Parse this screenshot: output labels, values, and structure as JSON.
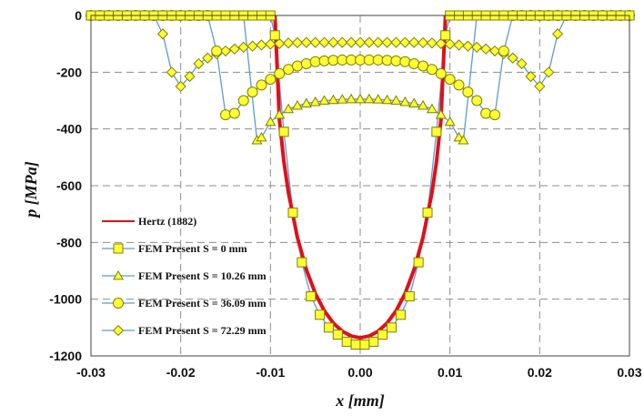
{
  "chart_data": {
    "type": "line",
    "xlabel": "x [mm]",
    "ylabel": "p [MPa]",
    "xlim": [
      -0.03,
      0.03
    ],
    "ylim": [
      -1200,
      0
    ],
    "x_ticks": [
      "-0.03",
      "-0.02",
      "-0.01",
      "0.00",
      "0.01",
      "0.02",
      "0.03"
    ],
    "y_ticks": [
      "0",
      "-200",
      "-400",
      "-600",
      "-800",
      "-1000",
      "-1200"
    ],
    "grid": "dashed",
    "legend_position": "lower-left",
    "colors": {
      "hertz": "#e0101a",
      "fem_line": "#5b9bd5",
      "marker_fill": "#ffff33",
      "marker_stroke": "#7f7f00"
    },
    "series": [
      {
        "name": "Hertz (1882)",
        "style": "line",
        "x": [
          -0.0095,
          -0.009,
          -0.0085,
          -0.008,
          -0.007,
          -0.006,
          -0.005,
          -0.004,
          -0.003,
          -0.002,
          -0.001,
          0.0,
          0.001,
          0.002,
          0.003,
          0.004,
          0.005,
          0.006,
          0.007,
          0.008,
          0.0085,
          0.009,
          0.0095
        ],
        "y": [
          0,
          -368,
          -516,
          -624,
          -782,
          -896,
          -980,
          -1041,
          -1084,
          -1113,
          -1130,
          -1136,
          -1130,
          -1113,
          -1084,
          -1041,
          -980,
          -896,
          -782,
          -624,
          -516,
          -368,
          0
        ]
      },
      {
        "name": "FEM Present S = 0 mm",
        "marker": "square",
        "x": [
          -0.03,
          -0.029,
          -0.028,
          -0.027,
          -0.026,
          -0.025,
          -0.024,
          -0.023,
          -0.022,
          -0.021,
          -0.02,
          -0.019,
          -0.018,
          -0.017,
          -0.016,
          -0.015,
          -0.014,
          -0.013,
          -0.012,
          -0.011,
          -0.01,
          -0.0095,
          -0.0085,
          -0.0075,
          -0.0065,
          -0.0055,
          -0.0045,
          -0.0035,
          -0.0025,
          -0.0015,
          -0.0005,
          0.0005,
          0.0015,
          0.0025,
          0.0035,
          0.0045,
          0.0055,
          0.0065,
          0.0075,
          0.0085,
          0.0095,
          0.01,
          0.011,
          0.012,
          0.013,
          0.014,
          0.015,
          0.016,
          0.017,
          0.018,
          0.019,
          0.02,
          0.021,
          0.022,
          0.023,
          0.024,
          0.025,
          0.026,
          0.027,
          0.028,
          0.029,
          0.03
        ],
        "y": [
          0,
          0,
          0,
          0,
          0,
          0,
          0,
          0,
          0,
          0,
          0,
          0,
          0,
          0,
          0,
          0,
          0,
          0,
          0,
          0,
          0,
          -70,
          -410,
          -695,
          -870,
          -990,
          -1055,
          -1100,
          -1125,
          -1150,
          -1160,
          -1160,
          -1150,
          -1125,
          -1100,
          -1055,
          -990,
          -870,
          -695,
          -410,
          -70,
          0,
          0,
          0,
          0,
          0,
          0,
          0,
          0,
          0,
          0,
          0,
          0,
          0,
          0,
          0,
          0,
          0,
          0,
          0,
          0,
          0
        ]
      },
      {
        "name": "FEM Present S = 10.26 mm",
        "marker": "triangle",
        "x": [
          -0.03,
          -0.029,
          -0.028,
          -0.027,
          -0.026,
          -0.025,
          -0.024,
          -0.023,
          -0.022,
          -0.021,
          -0.02,
          -0.019,
          -0.018,
          -0.017,
          -0.016,
          -0.015,
          -0.014,
          -0.013,
          -0.0115,
          -0.011,
          -0.01,
          -0.009,
          -0.008,
          -0.007,
          -0.006,
          -0.005,
          -0.004,
          -0.003,
          -0.002,
          -0.001,
          0.0,
          0.001,
          0.002,
          0.003,
          0.004,
          0.005,
          0.006,
          0.007,
          0.008,
          0.009,
          0.01,
          0.011,
          0.0115,
          0.013,
          0.014,
          0.015,
          0.016,
          0.017,
          0.018,
          0.019,
          0.02,
          0.021,
          0.022,
          0.023,
          0.024,
          0.025,
          0.026,
          0.027,
          0.028,
          0.029,
          0.03
        ],
        "y": [
          0,
          0,
          0,
          0,
          0,
          0,
          0,
          0,
          0,
          0,
          0,
          0,
          0,
          0,
          0,
          0,
          0,
          0,
          -440,
          -430,
          -375,
          -350,
          -330,
          -318,
          -310,
          -305,
          -300,
          -298,
          -296,
          -295,
          -295,
          -295,
          -296,
          -298,
          -300,
          -305,
          -310,
          -318,
          -330,
          -350,
          -375,
          -430,
          -440,
          0,
          0,
          0,
          0,
          0,
          0,
          0,
          0,
          0,
          0,
          0,
          0,
          0,
          0,
          0,
          0,
          0,
          0
        ]
      },
      {
        "name": "FEM Present S = 36.09 mm",
        "marker": "circle",
        "x": [
          -0.03,
          -0.029,
          -0.028,
          -0.027,
          -0.026,
          -0.025,
          -0.024,
          -0.023,
          -0.022,
          -0.021,
          -0.02,
          -0.019,
          -0.018,
          -0.017,
          -0.016,
          -0.015,
          -0.014,
          -0.013,
          -0.012,
          -0.011,
          -0.01,
          -0.009,
          -0.008,
          -0.007,
          -0.006,
          -0.005,
          -0.004,
          -0.003,
          -0.002,
          -0.001,
          0.0,
          0.001,
          0.002,
          0.003,
          0.004,
          0.005,
          0.006,
          0.007,
          0.008,
          0.009,
          0.01,
          0.011,
          0.012,
          0.013,
          0.014,
          0.015,
          0.016,
          0.017,
          0.018,
          0.019,
          0.02,
          0.021,
          0.022,
          0.023,
          0.024,
          0.025,
          0.026,
          0.027,
          0.028,
          0.029,
          0.03
        ],
        "y": [
          0,
          0,
          0,
          0,
          0,
          0,
          0,
          0,
          0,
          0,
          0,
          0,
          0,
          0,
          -125,
          -350,
          -345,
          -300,
          -270,
          -245,
          -225,
          -205,
          -190,
          -178,
          -170,
          -163,
          -160,
          -158,
          -157,
          -157,
          -157,
          -157,
          -157,
          -158,
          -160,
          -163,
          -170,
          -178,
          -190,
          -205,
          -225,
          -245,
          -270,
          -300,
          -345,
          -350,
          -125,
          0,
          0,
          0,
          0,
          0,
          0,
          0,
          0,
          0,
          0,
          0,
          0,
          0,
          0
        ]
      },
      {
        "name": "FEM Present S = 72.29 mm",
        "marker": "diamond",
        "x": [
          -0.03,
          -0.029,
          -0.028,
          -0.027,
          -0.026,
          -0.025,
          -0.024,
          -0.023,
          -0.022,
          -0.021,
          -0.02,
          -0.019,
          -0.018,
          -0.017,
          -0.016,
          -0.015,
          -0.014,
          -0.013,
          -0.012,
          -0.011,
          -0.01,
          -0.009,
          -0.008,
          -0.007,
          -0.006,
          -0.005,
          -0.004,
          -0.003,
          -0.002,
          -0.001,
          0.0,
          0.001,
          0.002,
          0.003,
          0.004,
          0.005,
          0.006,
          0.007,
          0.008,
          0.009,
          0.01,
          0.011,
          0.012,
          0.013,
          0.014,
          0.015,
          0.016,
          0.017,
          0.018,
          0.019,
          0.02,
          0.021,
          0.022,
          0.023,
          0.024,
          0.025,
          0.026,
          0.027,
          0.028,
          0.029,
          0.03
        ],
        "y": [
          0,
          0,
          0,
          0,
          0,
          0,
          0,
          0,
          -65,
          -200,
          -250,
          -215,
          -170,
          -150,
          -135,
          -125,
          -118,
          -112,
          -108,
          -104,
          -101,
          -99,
          -97,
          -96,
          -95,
          -95,
          -95,
          -95,
          -95,
          -95,
          -95,
          -95,
          -95,
          -95,
          -95,
          -95,
          -95,
          -96,
          -97,
          -99,
          -101,
          -104,
          -108,
          -112,
          -118,
          -125,
          -135,
          -150,
          -170,
          -215,
          -250,
          -200,
          -65,
          0,
          0,
          0,
          0,
          0,
          0,
          0,
          0
        ]
      }
    ]
  }
}
